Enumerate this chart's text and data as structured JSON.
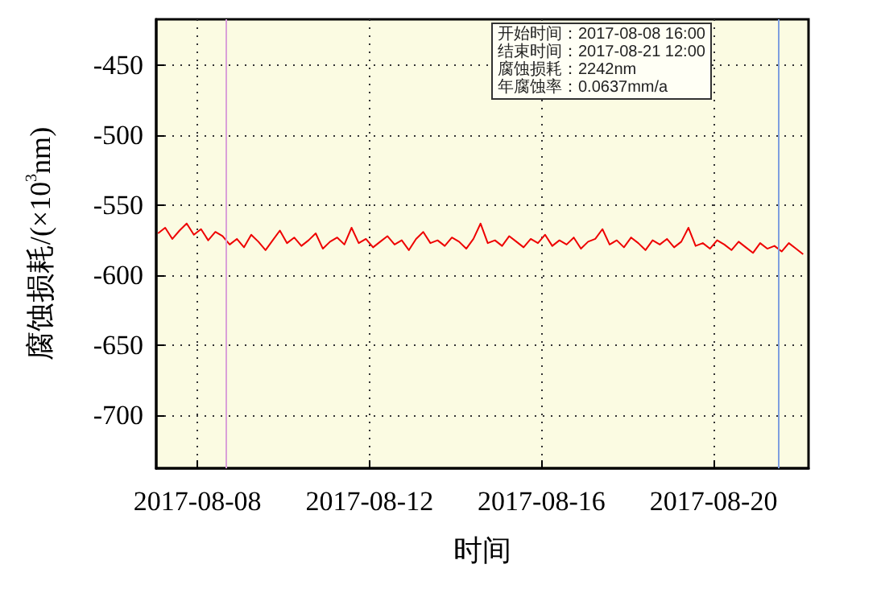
{
  "chart_data": {
    "type": "line",
    "xlabel": "时间",
    "ylabel": "腐蚀损耗/(×10$^{3}$nm)",
    "annotations": [
      "开始时间：2017-08-08 16:00",
      "结束时间：2017-08-21 12:00",
      "腐蚀损耗：2242nm",
      "年腐蚀率：0.0637mm/a"
    ],
    "x": [
      "2017-08-07T02:00",
      "2017-08-07T06:00",
      "2017-08-07T10:00",
      "2017-08-07T14:00",
      "2017-08-07T18:00",
      "2017-08-07T22:00",
      "2017-08-08T02:00",
      "2017-08-08T06:00",
      "2017-08-08T10:00",
      "2017-08-08T14:00",
      "2017-08-08T18:00",
      "2017-08-08T22:00",
      "2017-08-09T02:00",
      "2017-08-09T06:00",
      "2017-08-09T10:00",
      "2017-08-09T14:00",
      "2017-08-09T18:00",
      "2017-08-09T22:00",
      "2017-08-10T02:00",
      "2017-08-10T06:00",
      "2017-08-10T10:00",
      "2017-08-10T14:00",
      "2017-08-10T18:00",
      "2017-08-10T22:00",
      "2017-08-11T02:00",
      "2017-08-11T06:00",
      "2017-08-11T10:00",
      "2017-08-11T14:00",
      "2017-08-11T18:00",
      "2017-08-11T22:00",
      "2017-08-12T02:00",
      "2017-08-12T06:00",
      "2017-08-12T10:00",
      "2017-08-12T14:00",
      "2017-08-12T18:00",
      "2017-08-12T22:00",
      "2017-08-13T02:00",
      "2017-08-13T06:00",
      "2017-08-13T10:00",
      "2017-08-13T14:00",
      "2017-08-13T18:00",
      "2017-08-13T22:00",
      "2017-08-14T02:00",
      "2017-08-14T06:00",
      "2017-08-14T10:00",
      "2017-08-14T14:00",
      "2017-08-14T18:00",
      "2017-08-14T22:00",
      "2017-08-15T02:00",
      "2017-08-15T06:00",
      "2017-08-15T10:00",
      "2017-08-15T14:00",
      "2017-08-15T18:00",
      "2017-08-15T22:00",
      "2017-08-16T02:00",
      "2017-08-16T06:00",
      "2017-08-16T10:00",
      "2017-08-16T14:00",
      "2017-08-16T18:00",
      "2017-08-16T22:00",
      "2017-08-17T02:00",
      "2017-08-17T06:00",
      "2017-08-17T10:00",
      "2017-08-17T14:00",
      "2017-08-17T18:00",
      "2017-08-17T22:00",
      "2017-08-18T02:00",
      "2017-08-18T06:00",
      "2017-08-18T10:00",
      "2017-08-18T14:00",
      "2017-08-18T18:00",
      "2017-08-18T22:00",
      "2017-08-19T02:00",
      "2017-08-19T06:00",
      "2017-08-19T10:00",
      "2017-08-19T14:00",
      "2017-08-19T18:00",
      "2017-08-19T22:00",
      "2017-08-20T02:00",
      "2017-08-20T06:00",
      "2017-08-20T10:00",
      "2017-08-20T14:00",
      "2017-08-20T18:00",
      "2017-08-20T22:00",
      "2017-08-21T02:00",
      "2017-08-21T06:00",
      "2017-08-21T10:00",
      "2017-08-21T14:00",
      "2017-08-21T18:00",
      "2017-08-21T22:00",
      "2017-08-22T02:00"
    ],
    "series": [
      {
        "color": "#ee0000",
        "values": [
          -570,
          -566,
          -574,
          -568,
          -563,
          -571,
          -567,
          -575,
          -569,
          -572,
          -578,
          -574,
          -580,
          -571,
          -576,
          -582,
          -575,
          -568,
          -577,
          -573,
          -579,
          -575,
          -570,
          -581,
          -576,
          -573,
          -578,
          -566,
          -577,
          -574,
          -580,
          -576,
          -572,
          -578,
          -575,
          -582,
          -574,
          -569,
          -577,
          -575,
          -579,
          -573,
          -576,
          -581,
          -574,
          -563,
          -577,
          -575,
          -579,
          -572,
          -576,
          -580,
          -574,
          -577,
          -571,
          -579,
          -575,
          -578,
          -573,
          -581,
          -576,
          -574,
          -567,
          -578,
          -575,
          -580,
          -573,
          -577,
          -582,
          -575,
          -578,
          -574,
          -580,
          -576,
          -566,
          -579,
          -577,
          -581,
          -575,
          -578,
          -582,
          -576,
          -580,
          -584,
          -577,
          -581,
          -579,
          -583,
          -577,
          -581,
          -585
        ]
      }
    ],
    "xlim": [
      "2017-08-07T01:00",
      "2017-08-22T05:00"
    ],
    "xticks": [
      "2017-08-08",
      "2017-08-12",
      "2017-08-16",
      "2017-08-20"
    ],
    "ylim": [
      -738,
      -417
    ],
    "yticks": [
      -700,
      -650,
      -600,
      -550,
      -500,
      -450
    ],
    "ref_lines": [
      {
        "axis": "x",
        "value": "2017-08-08T16:00",
        "color": "#d9a0d9"
      },
      {
        "axis": "x",
        "value": "2017-08-21T12:00",
        "color": "#7f9fdf"
      }
    ],
    "grid": true
  }
}
